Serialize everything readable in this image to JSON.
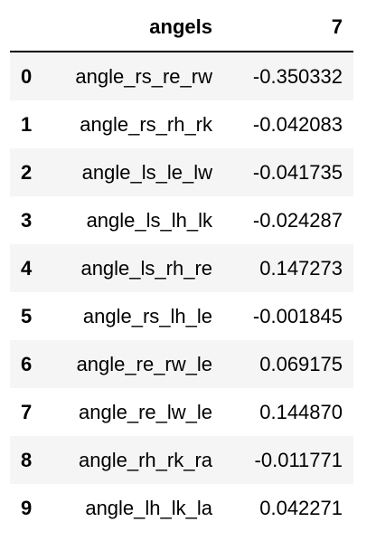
{
  "table": {
    "index_header": "",
    "columns": [
      "angels",
      "7"
    ],
    "rows": [
      {
        "index": "0",
        "name": "angle_rs_re_rw",
        "value": "-0.350332"
      },
      {
        "index": "1",
        "name": "angle_rs_rh_rk",
        "value": "-0.042083"
      },
      {
        "index": "2",
        "name": "angle_ls_le_lw",
        "value": "-0.041735"
      },
      {
        "index": "3",
        "name": "angle_ls_lh_lk",
        "value": "-0.024287"
      },
      {
        "index": "4",
        "name": "angle_ls_rh_re",
        "value": "0.147273"
      },
      {
        "index": "5",
        "name": "angle_rs_lh_le",
        "value": "-0.001845"
      },
      {
        "index": "6",
        "name": "angle_re_rw_le",
        "value": "0.069175"
      },
      {
        "index": "7",
        "name": "angle_re_lw_le",
        "value": "0.144870"
      },
      {
        "index": "8",
        "name": "angle_rh_rk_ra",
        "value": "-0.011771"
      },
      {
        "index": "9",
        "name": "angle_lh_lk_la",
        "value": "0.042271"
      }
    ],
    "colors": {
      "striped_row": "#f5f5f5",
      "plain_row": "#ffffff",
      "header_rule": "#000000"
    }
  }
}
